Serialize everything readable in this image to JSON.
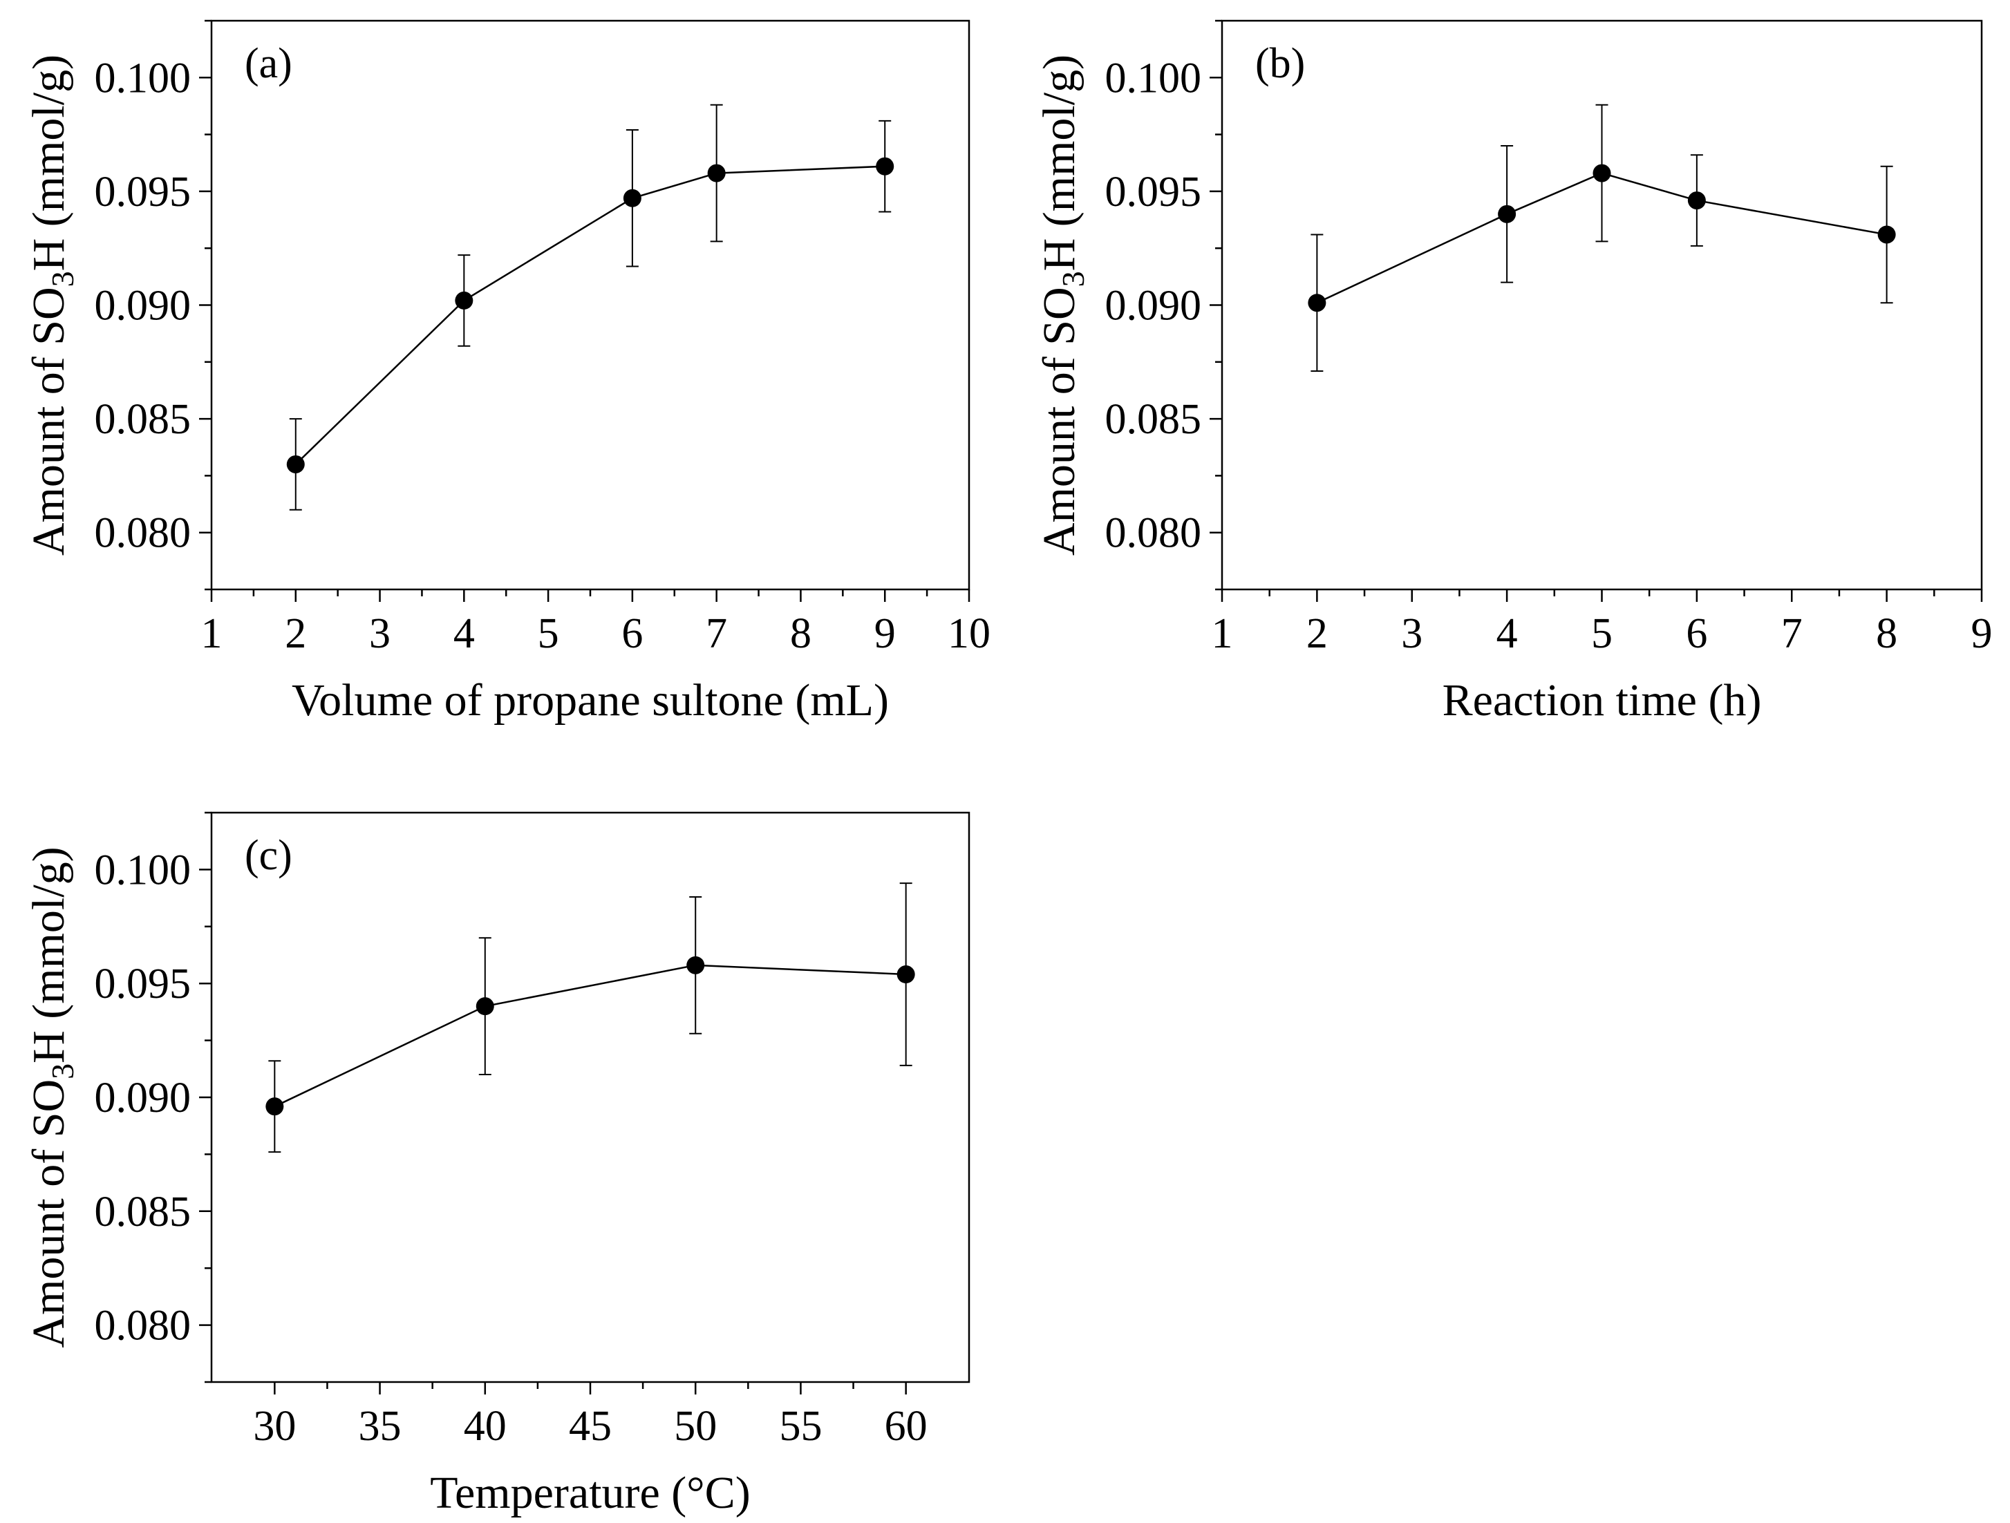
{
  "chart_data": [
    {
      "type": "line",
      "panel_label": "(a)",
      "xlabel": "Volume of propane sultone (mL)",
      "ylabel": {
        "prefix": "Amount of SO",
        "subscript": "3",
        "suffix": "H (mmol/g)"
      },
      "xlim": [
        1,
        10
      ],
      "ylim": [
        0.0775,
        0.1025
      ],
      "xticks": [
        1,
        2,
        3,
        4,
        5,
        6,
        7,
        8,
        9,
        10
      ],
      "xtick_labels": [
        "1",
        "2",
        "3",
        "4",
        "5",
        "6",
        "7",
        "8",
        "9",
        "10"
      ],
      "yticks": [
        0.08,
        0.085,
        0.09,
        0.095,
        0.1
      ],
      "ytick_labels": [
        "0.080",
        "0.085",
        "0.090",
        "0.095",
        "0.100"
      ],
      "series": [
        {
          "name": "SO3H amount",
          "x": [
            2,
            4,
            6,
            7,
            9
          ],
          "y": [
            0.083,
            0.0902,
            0.0947,
            0.0958,
            0.0961
          ],
          "err": [
            0.002,
            0.002,
            0.003,
            0.003,
            0.002
          ]
        }
      ]
    },
    {
      "type": "line",
      "panel_label": "(b)",
      "xlabel": "Reaction  time (h)",
      "ylabel": {
        "prefix": "Amount of SO",
        "subscript": "3",
        "suffix": "H (mmol/g)"
      },
      "xlim": [
        1,
        9
      ],
      "ylim": [
        0.0775,
        0.1025
      ],
      "xticks": [
        1,
        2,
        3,
        4,
        5,
        6,
        7,
        8,
        9
      ],
      "xtick_labels": [
        "1",
        "2",
        "3",
        "4",
        "5",
        "6",
        "7",
        "8",
        "9"
      ],
      "yticks": [
        0.08,
        0.085,
        0.09,
        0.095,
        0.1
      ],
      "ytick_labels": [
        "0.080",
        "0.085",
        "0.090",
        "0.095",
        "0.100"
      ],
      "series": [
        {
          "name": "SO3H amount",
          "x": [
            2,
            4,
            5,
            6,
            8
          ],
          "y": [
            0.0901,
            0.094,
            0.0958,
            0.0946,
            0.0931
          ],
          "err": [
            0.003,
            0.003,
            0.003,
            0.002,
            0.003
          ]
        }
      ]
    },
    {
      "type": "line",
      "panel_label": "(c)",
      "xlabel": "Temperature (°C)",
      "ylabel": {
        "prefix": "Amount of SO",
        "subscript": "3",
        "suffix": "H (mmol/g)"
      },
      "xlim": [
        27,
        63
      ],
      "ylim": [
        0.0775,
        0.1025
      ],
      "xticks": [
        30,
        35,
        40,
        45,
        50,
        55,
        60
      ],
      "xtick_labels": [
        "30",
        "35",
        "40",
        "45",
        "50",
        "55",
        "60"
      ],
      "yticks": [
        0.08,
        0.085,
        0.09,
        0.095,
        0.1
      ],
      "ytick_labels": [
        "0.080",
        "0.085",
        "0.090",
        "0.095",
        "0.100"
      ],
      "series": [
        {
          "name": "SO3H amount",
          "x": [
            30,
            40,
            50,
            60
          ],
          "y": [
            0.0896,
            0.094,
            0.0958,
            0.0954
          ],
          "err": [
            0.002,
            0.003,
            0.003,
            0.004
          ]
        }
      ]
    }
  ]
}
